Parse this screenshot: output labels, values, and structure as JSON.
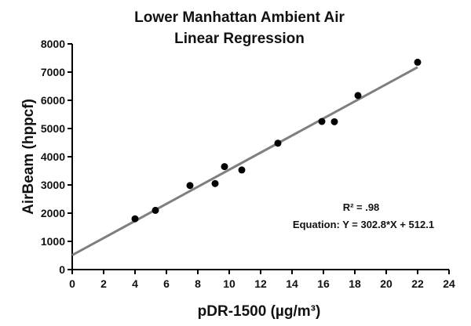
{
  "chart_data": {
    "type": "scatter",
    "title": [
      "Lower Manhattan Ambient Air",
      "Linear Regression"
    ],
    "xlabel": "pDR-1500 (µg/m³)",
    "ylabel": "AirBeam (hppcf)",
    "xlim": [
      0,
      24
    ],
    "ylim": [
      0,
      8000
    ],
    "xticks": [
      0,
      2,
      4,
      6,
      8,
      10,
      12,
      14,
      16,
      18,
      20,
      22,
      24
    ],
    "yticks": [
      0,
      1000,
      2000,
      3000,
      4000,
      5000,
      6000,
      7000,
      8000
    ],
    "grid": false,
    "series": [
      {
        "points": [
          {
            "x": 4.0,
            "y": 1800
          },
          {
            "x": 5.3,
            "y": 2100
          },
          {
            "x": 7.5,
            "y": 2980
          },
          {
            "x": 9.1,
            "y": 3050
          },
          {
            "x": 9.7,
            "y": 3650
          },
          {
            "x": 10.8,
            "y": 3530
          },
          {
            "x": 13.1,
            "y": 4480
          },
          {
            "x": 15.9,
            "y": 5250
          },
          {
            "x": 16.7,
            "y": 5240
          },
          {
            "x": 18.2,
            "y": 6170
          },
          {
            "x": 22.0,
            "y": 7350
          }
        ],
        "color": "#000000"
      }
    ],
    "fit_line": {
      "slope": 302.8,
      "intercept": 512.1,
      "x_range": [
        0,
        22
      ],
      "color": "#7f7f7f"
    },
    "annotations": [
      "R² = .98",
      "Equation: Y = 302.8*X + 512.1"
    ]
  }
}
